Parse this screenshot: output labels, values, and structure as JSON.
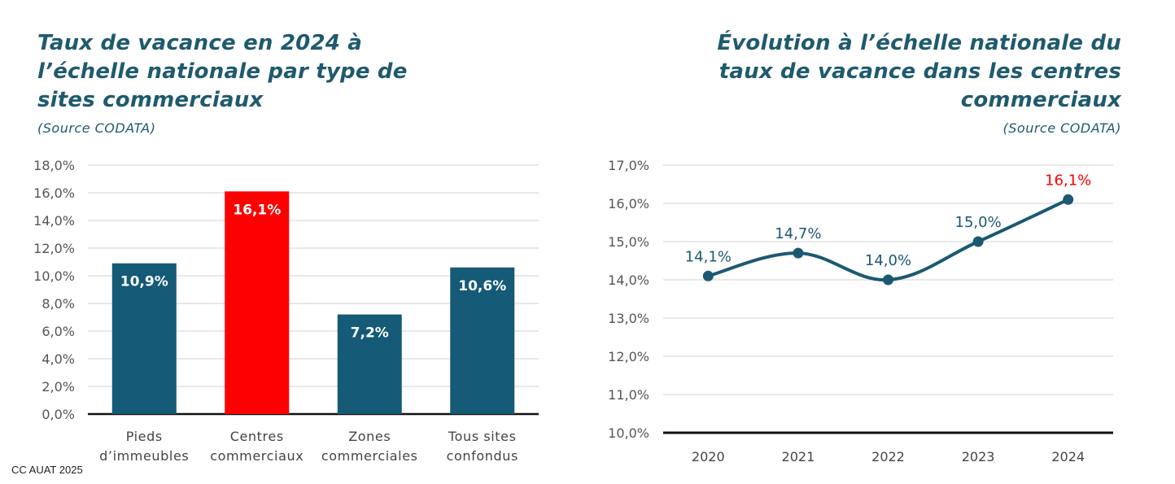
{
  "colors": {
    "title": "#1f5a6e",
    "bar": "#155a76",
    "highlight": "#ff0000",
    "line": "#1b5972",
    "grid": "#d9d9d9",
    "axis_text": "#555555",
    "baseline": "#111111"
  },
  "credit": "CC AUAT 2025",
  "chart_data": [
    {
      "type": "bar",
      "title": "Taux de vacance en 2024 à l’échelle nationale par type de sites commerciaux",
      "source": "(Source CODATA)",
      "categories": [
        [
          "Pieds",
          "d’immeubles"
        ],
        [
          "Centres",
          "commerciaux"
        ],
        [
          "Zones",
          "commerciales"
        ],
        [
          "Tous sites",
          "confondus"
        ]
      ],
      "values": [
        10.9,
        16.1,
        7.2,
        10.6
      ],
      "value_labels": [
        "10,9%",
        "16,1%",
        "7,2%",
        "10,6%"
      ],
      "highlight_index": 1,
      "ylim": [
        0,
        18
      ],
      "yticks": [
        0,
        2,
        4,
        6,
        8,
        10,
        12,
        14,
        16,
        18
      ],
      "ytick_labels": [
        "0,0%",
        "2,0%",
        "4,0%",
        "6,0%",
        "8,0%",
        "10,0%",
        "12,0%",
        "14,0%",
        "16,0%",
        "18,0%"
      ],
      "grid": true,
      "xlabel": "",
      "ylabel": ""
    },
    {
      "type": "line",
      "title": "Évolution à l’échelle nationale du taux de vacance dans les centres commerciaux",
      "source": "(Source CODATA)",
      "x": [
        "2020",
        "2021",
        "2022",
        "2023",
        "2024"
      ],
      "values": [
        14.1,
        14.7,
        14.0,
        15.0,
        16.1
      ],
      "value_labels": [
        "14,1%",
        "14,7%",
        "14,0%",
        "15,0%",
        "16,1%"
      ],
      "highlight_index": 4,
      "ylim": [
        10,
        17
      ],
      "yticks": [
        10,
        11,
        12,
        13,
        14,
        15,
        16,
        17
      ],
      "ytick_labels": [
        "10,0%",
        "11,0%",
        "12,0%",
        "13,0%",
        "14,0%",
        "15,0%",
        "16,0%",
        "17,0%"
      ],
      "grid": true,
      "smooth": true,
      "xlabel": "",
      "ylabel": ""
    }
  ]
}
